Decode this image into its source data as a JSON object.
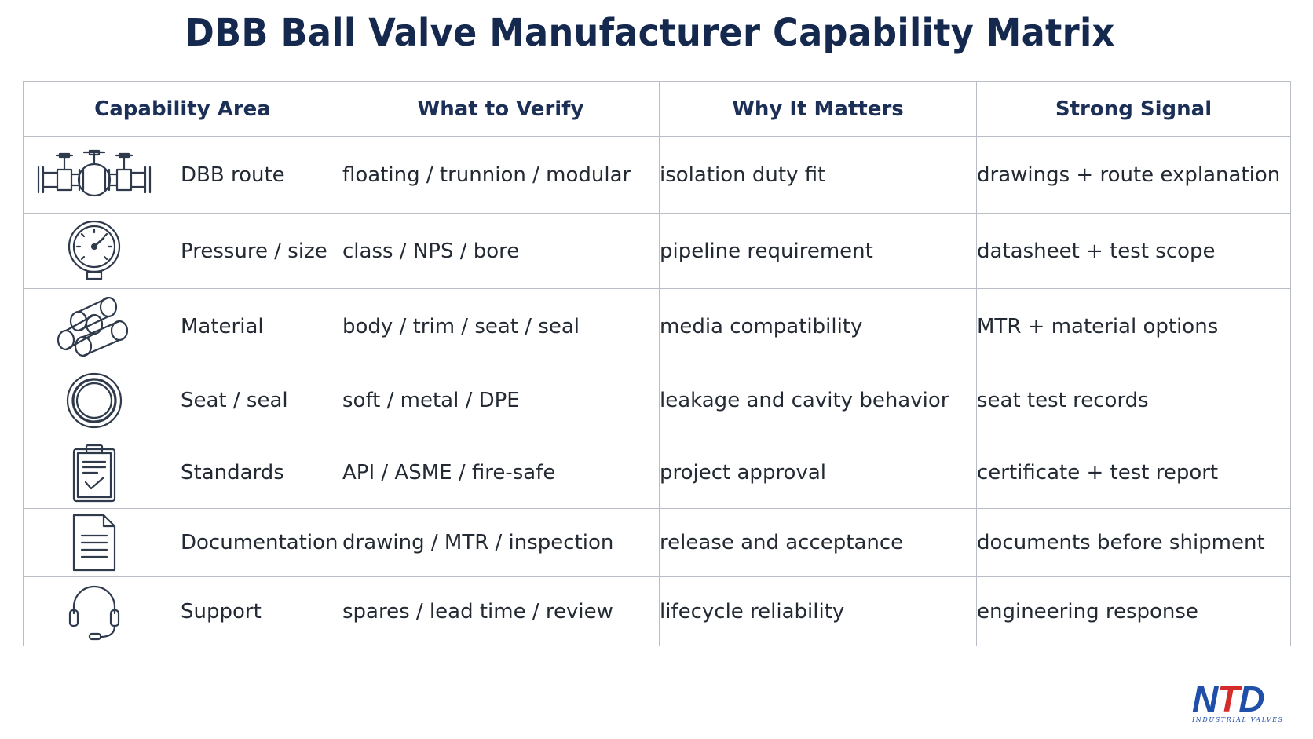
{
  "title": "DBB Ball Valve Manufacturer Capability Matrix",
  "table": {
    "headers": [
      "Capability Area",
      "What to Verify",
      "Why It Matters",
      "Strong Signal"
    ],
    "rows": [
      {
        "icon": "valve-assembly-icon",
        "area": "DBB route",
        "verify": "floating / trunnion / modular",
        "why": "isolation duty fit",
        "signal": "drawings + route explanation"
      },
      {
        "icon": "pressure-gauge-icon",
        "area": "Pressure / size",
        "verify": "class / NPS / bore",
        "why": "pipeline requirement",
        "signal": "datasheet + test scope"
      },
      {
        "icon": "material-bars-icon",
        "area": "Material",
        "verify": "body / trim / seat / seal",
        "why": "media compatibility",
        "signal": "MTR + material options"
      },
      {
        "icon": "seal-ring-icon",
        "area": "Seat / seal",
        "verify": "soft / metal / DPE",
        "why": "leakage and cavity behavior",
        "signal": "seat test records"
      },
      {
        "icon": "clipboard-check-icon",
        "area": "Standards",
        "verify": "API / ASME / fire-safe",
        "why": "project approval",
        "signal": "certificate + test report"
      },
      {
        "icon": "document-icon",
        "area": "Documentation",
        "verify": "drawing / MTR / inspection",
        "why": "release and acceptance",
        "signal": "documents before shipment"
      },
      {
        "icon": "headset-icon",
        "area": "Support",
        "verify": "spares / lead time / review",
        "why": "lifecycle reliability",
        "signal": "engineering response"
      }
    ]
  },
  "logo": {
    "mark_left": "N",
    "mark_t": "T",
    "mark_right": "D",
    "subtitle": "INDUSTRIAL VALVES"
  },
  "colors": {
    "title": "#15294f",
    "header_text": "#1c2f57",
    "border": "#b9bec6",
    "icon_stroke": "#2f3b4c",
    "logo_blue": "#1f4fa8",
    "logo_red": "#d42b2b"
  }
}
